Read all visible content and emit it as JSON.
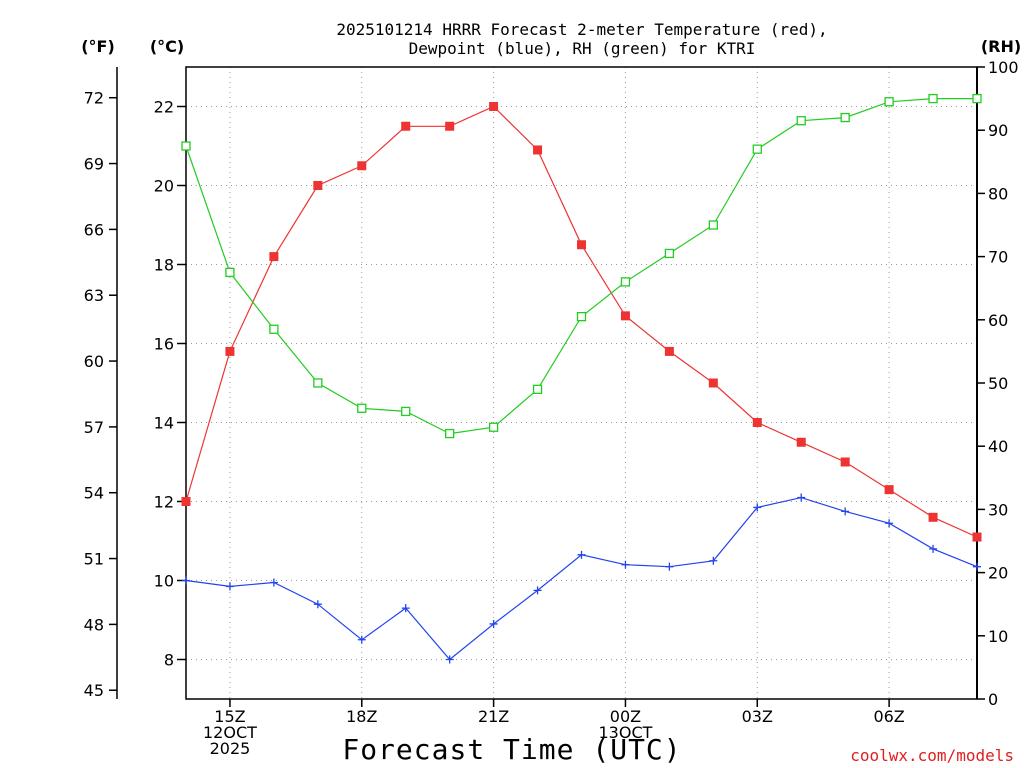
{
  "chart_data": {
    "type": "line",
    "title_lines": [
      "2025101214 HRRR Forecast 2-meter Temperature (red),",
      "Dewpoint (blue), RH (green) for KTRI"
    ],
    "xlabel": "Forecast Time (UTC)",
    "credit": "coolwx.com/models",
    "unit_labels": {
      "fahrenheit": "(°F)",
      "celsius": "(°C)",
      "rh": "(RH)"
    },
    "x_hours": [
      14,
      15,
      16,
      17,
      18,
      19,
      20,
      21,
      22,
      23,
      24,
      25,
      26,
      27,
      28,
      29,
      30,
      31,
      32
    ],
    "xlim": [
      14,
      32
    ],
    "x_ticks": [
      {
        "hour": 15,
        "lines": [
          "15Z",
          "12OCT",
          "2025"
        ]
      },
      {
        "hour": 18,
        "lines": [
          "18Z"
        ]
      },
      {
        "hour": 21,
        "lines": [
          "21Z"
        ]
      },
      {
        "hour": 24,
        "lines": [
          "00Z",
          "13OCT"
        ]
      },
      {
        "hour": 27,
        "lines": [
          "03Z"
        ]
      },
      {
        "hour": 30,
        "lines": [
          "06Z"
        ]
      }
    ],
    "celsius_axis": {
      "ylim": [
        7.0,
        23.0
      ],
      "ticks": [
        8,
        10,
        12,
        14,
        16,
        18,
        20,
        22
      ]
    },
    "fahrenheit_axis": {
      "ticks": [
        45,
        48,
        51,
        54,
        57,
        60,
        63,
        66,
        69,
        72
      ]
    },
    "rh_axis": {
      "ylim": [
        0,
        100
      ],
      "ticks": [
        0,
        10,
        20,
        30,
        40,
        50,
        60,
        70,
        80,
        90,
        100
      ]
    },
    "series": [
      {
        "name": "2-meter Temperature",
        "axis": "celsius",
        "color": "#ee3333",
        "marker": "filled-square",
        "values": [
          12.0,
          15.8,
          18.2,
          20.0,
          20.5,
          21.5,
          21.5,
          22.0,
          20.9,
          18.5,
          16.7,
          15.8,
          15.0,
          14.0,
          13.5,
          13.0,
          12.3,
          11.6,
          11.1
        ]
      },
      {
        "name": "Dewpoint",
        "axis": "celsius",
        "color": "#2244ee",
        "marker": "plus",
        "values": [
          10.0,
          9.85,
          9.95,
          9.4,
          8.5,
          9.3,
          8.0,
          8.9,
          9.75,
          10.65,
          10.4,
          10.35,
          10.5,
          11.85,
          12.1,
          11.75,
          11.45,
          10.8,
          10.35
        ]
      },
      {
        "name": "RH",
        "axis": "rh",
        "color": "#22cc22",
        "marker": "open-square",
        "values": [
          87.5,
          67.5,
          58.5,
          50.0,
          46.0,
          45.5,
          42.0,
          43.0,
          49.0,
          60.5,
          66.0,
          70.5,
          75.0,
          87.0,
          91.5,
          92.0,
          94.5,
          95.0,
          95.0
        ]
      }
    ]
  }
}
